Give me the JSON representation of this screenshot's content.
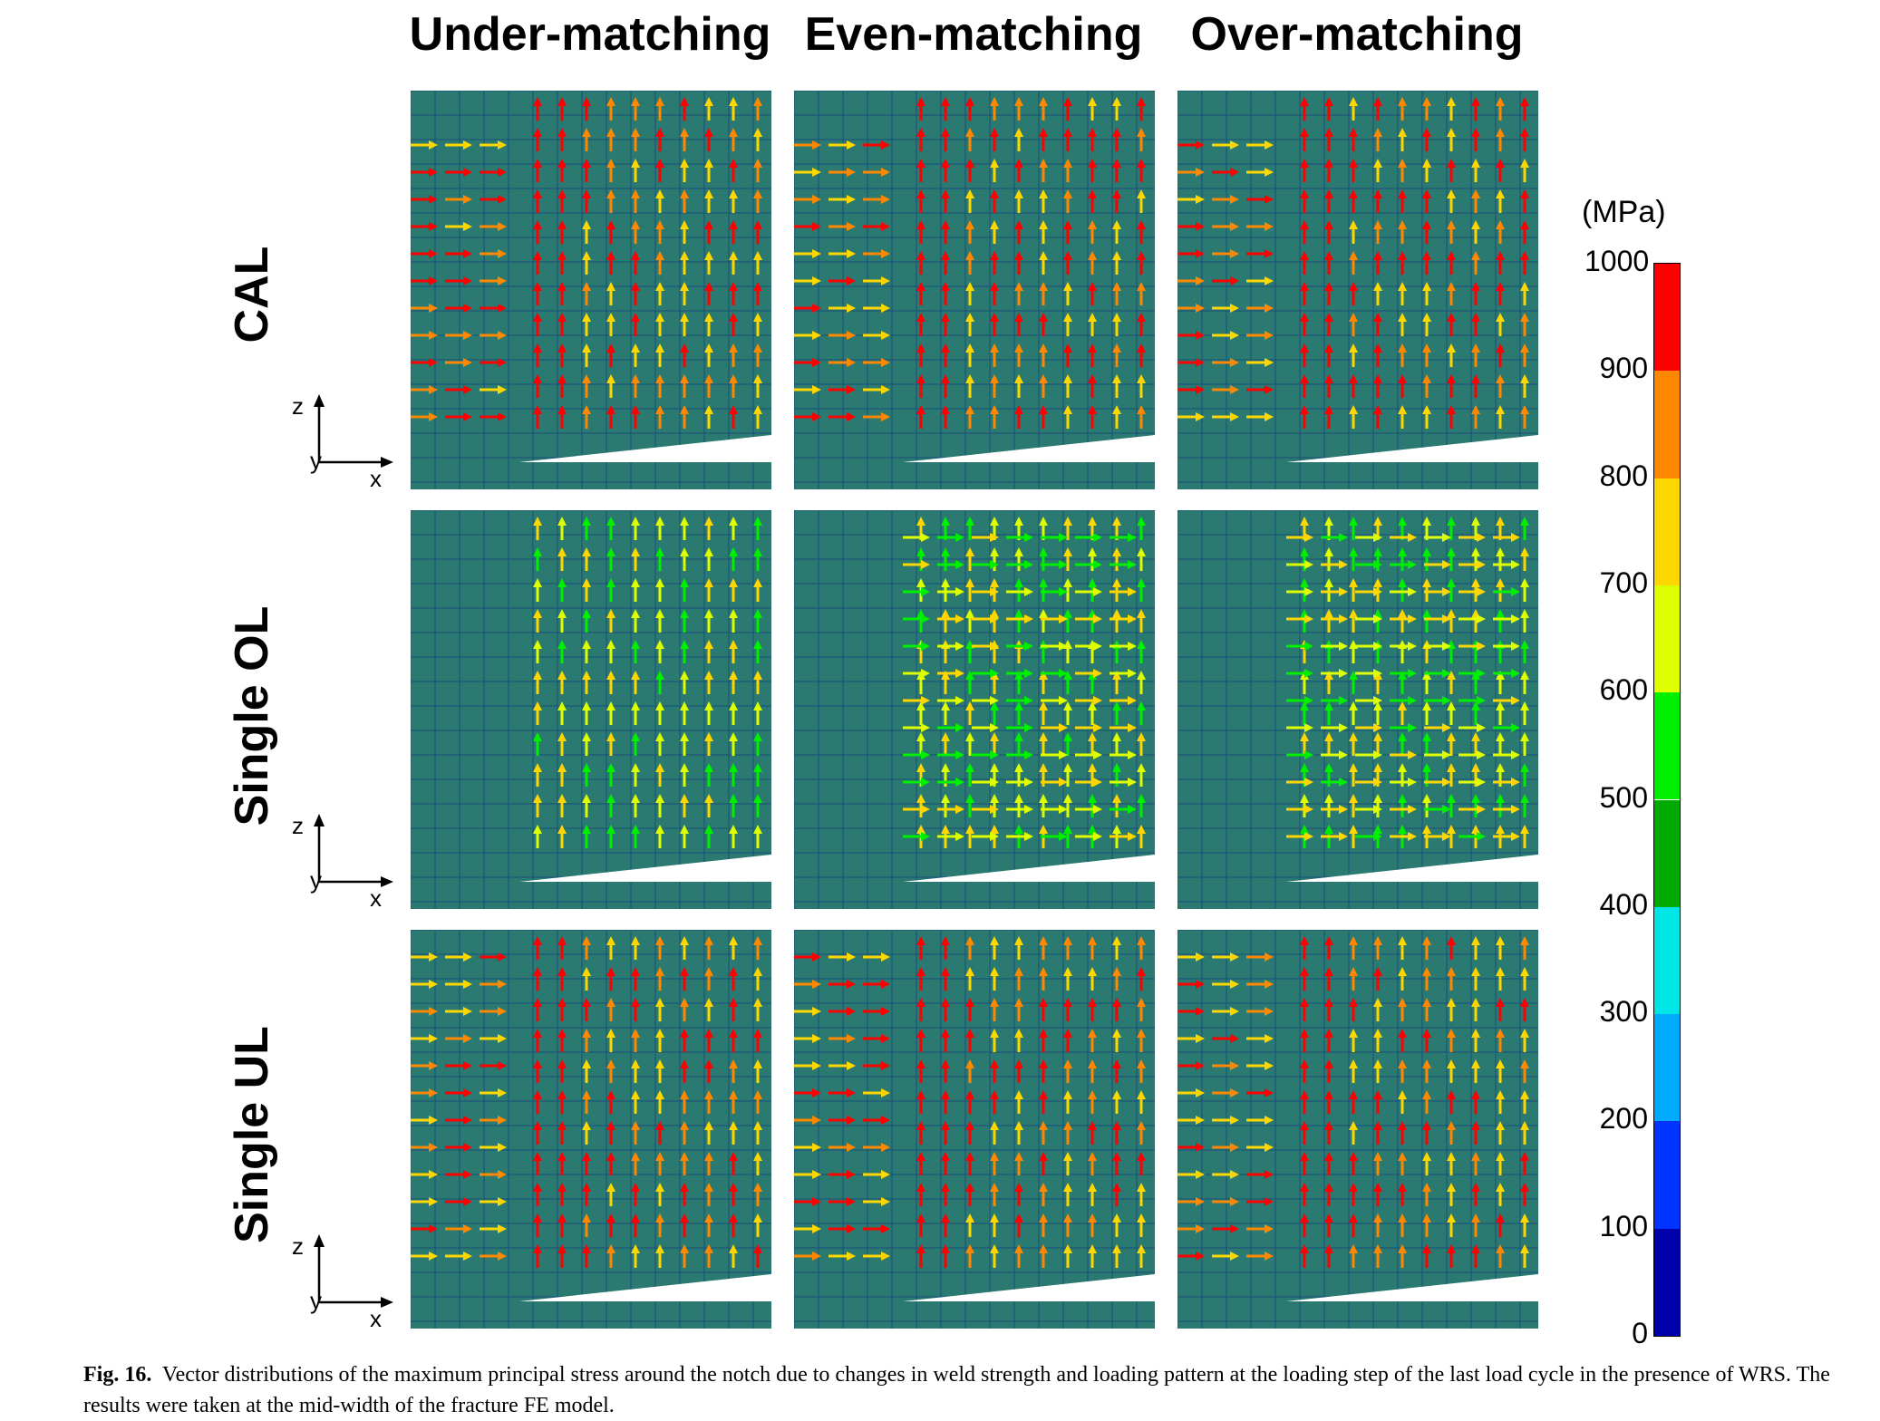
{
  "columns": [
    {
      "label": "Under-matching"
    },
    {
      "label": "Even-matching"
    },
    {
      "label": "Over-matching"
    }
  ],
  "rows": [
    {
      "label": "CAL"
    },
    {
      "label": "Single OL"
    },
    {
      "label": "Single UL"
    }
  ],
  "axes": {
    "z_label": "z",
    "x_label": "x",
    "y_label": "y"
  },
  "colorbar": {
    "unit": "(MPa)",
    "ticks": [
      "1000",
      "900",
      "800",
      "700",
      "600",
      "500",
      "400",
      "300",
      "200",
      "100",
      "0"
    ],
    "colors": [
      "#ff0000",
      "#ff8800",
      "#ffd700",
      "#ddff00",
      "#00ee00",
      "#00aa00",
      "#00e5e5",
      "#00aaff",
      "#0033ff",
      "#0000aa"
    ]
  },
  "figure": {
    "label": "Fig. 16.",
    "caption": "Vector distributions of the maximum principal stress around the notch due to changes in weld strength and loading pattern at the loading step of the last load cycle in the presence of WRS. The results were taken at the mid-width of the fracture FE model."
  }
}
